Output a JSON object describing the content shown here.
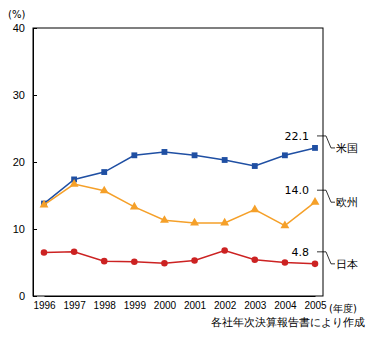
{
  "chart_data": {
    "type": "line",
    "y_label": "(%)",
    "x_label": "(年度)",
    "note": "各社年次決算報告書により作成",
    "categories": [
      "1996",
      "1997",
      "1998",
      "1999",
      "2000",
      "2001",
      "2002",
      "2003",
      "2004",
      "2005"
    ],
    "ylim": [
      0,
      40
    ],
    "yticks": [
      0,
      10,
      20,
      30,
      40
    ],
    "grid": false,
    "series": [
      {
        "name": "米国",
        "color": "#1f4fa3",
        "marker": "square",
        "values": [
          13.8,
          17.4,
          18.5,
          21.0,
          21.5,
          21.0,
          20.3,
          19.4,
          21.0,
          22.1
        ],
        "value_labels": [
          null,
          null,
          null,
          null,
          null,
          null,
          null,
          null,
          null,
          "22.1"
        ]
      },
      {
        "name": "欧州",
        "color": "#f5a029",
        "marker": "triangle",
        "values": [
          13.6,
          16.7,
          15.7,
          13.3,
          11.3,
          10.9,
          10.9,
          12.9,
          10.5,
          14.0
        ],
        "value_labels": [
          null,
          null,
          null,
          null,
          null,
          null,
          null,
          null,
          null,
          "14.0"
        ]
      },
      {
        "name": "日本",
        "color": "#cc2222",
        "marker": "circle",
        "values": [
          6.5,
          6.6,
          5.2,
          5.1,
          4.9,
          5.3,
          6.8,
          5.4,
          5.0,
          4.8
        ],
        "value_labels": [
          null,
          null,
          null,
          null,
          null,
          null,
          null,
          null,
          null,
          "4.8"
        ]
      }
    ]
  }
}
